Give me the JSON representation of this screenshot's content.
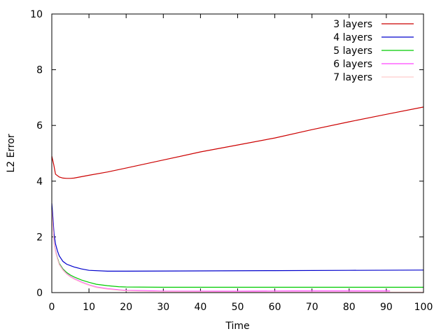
{
  "chart_data": {
    "type": "line",
    "xlabel": "Time",
    "ylabel": "L2 Error",
    "xlim": [
      0,
      100
    ],
    "ylim": [
      0,
      10
    ],
    "xticks": [
      0,
      10,
      20,
      30,
      40,
      50,
      60,
      70,
      80,
      90,
      100
    ],
    "yticks": [
      0,
      2,
      4,
      6,
      8,
      10
    ],
    "legend_position": "top-right",
    "series": [
      {
        "name": "3 layers",
        "color": "#cc0000",
        "x": [
          0,
          0.5,
          1,
          2,
          3,
          4,
          5,
          6,
          8,
          10,
          15,
          20,
          30,
          40,
          50,
          60,
          70,
          80,
          90,
          100
        ],
        "y": [
          4.9,
          4.6,
          4.25,
          4.15,
          4.11,
          4.1,
          4.1,
          4.11,
          4.16,
          4.21,
          4.33,
          4.47,
          4.76,
          5.05,
          5.3,
          5.55,
          5.85,
          6.13,
          6.4,
          6.66
        ]
      },
      {
        "name": "4 layers",
        "color": "#0000cc",
        "x": [
          0,
          0.3,
          0.6,
          1,
          1.5,
          2,
          3,
          4,
          5,
          6,
          8,
          10,
          15,
          20,
          40,
          60,
          80,
          100
        ],
        "y": [
          3.2,
          2.7,
          2.1,
          1.75,
          1.5,
          1.32,
          1.12,
          1.02,
          0.97,
          0.92,
          0.85,
          0.8,
          0.77,
          0.77,
          0.78,
          0.79,
          0.8,
          0.81
        ]
      },
      {
        "name": "5 layers",
        "color": "#00cc00",
        "x": [
          0,
          0.3,
          0.6,
          1,
          1.5,
          2,
          3,
          4,
          5,
          6,
          8,
          10,
          12,
          15,
          18,
          20,
          30,
          50,
          70,
          100
        ],
        "y": [
          3.0,
          2.4,
          1.8,
          1.5,
          1.25,
          1.05,
          0.85,
          0.72,
          0.63,
          0.56,
          0.45,
          0.37,
          0.3,
          0.25,
          0.21,
          0.2,
          0.19,
          0.19,
          0.19,
          0.19
        ]
      },
      {
        "name": "6 layers",
        "color": "#ff44ff",
        "x": [
          0,
          0.3,
          0.6,
          1,
          1.5,
          2,
          3,
          4,
          5,
          6,
          8,
          10,
          12,
          15,
          18,
          20,
          25,
          30,
          50,
          65,
          80,
          91
        ],
        "y": [
          3.0,
          2.4,
          1.8,
          1.5,
          1.22,
          1.02,
          0.82,
          0.68,
          0.58,
          0.5,
          0.38,
          0.28,
          0.2,
          0.14,
          0.1,
          0.08,
          0.07,
          0.05,
          0.05,
          0.06,
          0.06,
          0.06
        ]
      },
      {
        "name": "7 layers",
        "color": "#ffcccc",
        "x": [
          0,
          0.3,
          0.6,
          1,
          1.5,
          2,
          3,
          4,
          5,
          6,
          8,
          10,
          12,
          15,
          18,
          20,
          25,
          30,
          50,
          70,
          100
        ],
        "y": [
          2.9,
          2.3,
          1.75,
          1.45,
          1.2,
          1.0,
          0.8,
          0.66,
          0.56,
          0.48,
          0.36,
          0.26,
          0.18,
          0.12,
          0.08,
          0.06,
          0.04,
          0.03,
          0.02,
          0.02,
          0.02
        ]
      }
    ]
  }
}
